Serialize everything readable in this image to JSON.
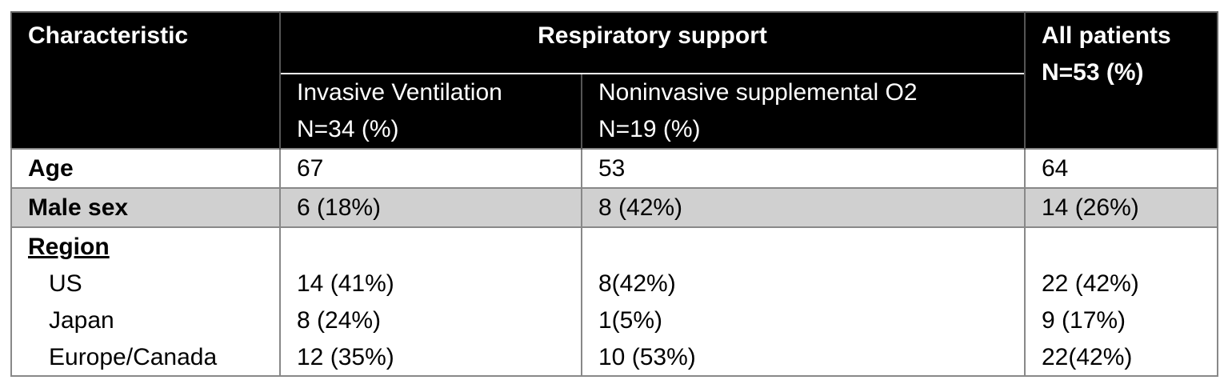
{
  "header": {
    "characteristic": "Characteristic",
    "respiratory_support": "Respiratory support",
    "invasive_line1": "Invasive Ventilation",
    "invasive_line2": "N=34 (%)",
    "noninvasive_line1": "Noninvasive supplemental O2",
    "noninvasive_line2": "N=19 (%)",
    "all_line1": "All patients",
    "all_line2": "N=53 (%)"
  },
  "rows": {
    "age": {
      "label": "Age",
      "invasive": "67",
      "noninvasive": "53",
      "all": "64"
    },
    "male_sex": {
      "label": "Male sex",
      "invasive": "6 (18%)",
      "noninvasive": "8 (42%)",
      "all": "14 (26%)"
    }
  },
  "region": {
    "label": "Region",
    "items": [
      {
        "label": "US",
        "invasive": "14 (41%)",
        "noninvasive": "8(42%)",
        "all": "22 (42%)"
      },
      {
        "label": "Japan",
        "invasive": "8 (24%)",
        "noninvasive": "1(5%)",
        "all": "9 (17%)"
      },
      {
        "label": "Europe/Canada",
        "invasive": "12 (35%)",
        "noninvasive": "10 (53%)",
        "all": "22(42%)"
      }
    ]
  }
}
